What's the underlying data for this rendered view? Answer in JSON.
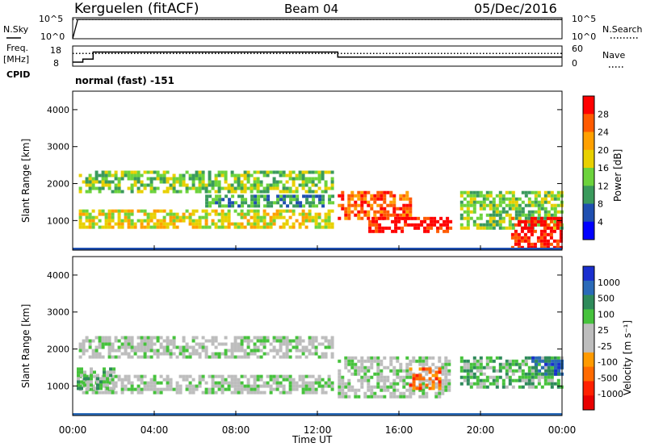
{
  "header": {
    "radar": "Kerguelen (fitACF)",
    "beam": "Beam 04",
    "date": "05/Dec/2016"
  },
  "noise_panel": {
    "left_label": "N.Sky",
    "right_label": "N.Search",
    "ticks": [
      "10^5",
      "10^0"
    ]
  },
  "freq_panel": {
    "left_label": "Freq.",
    "left_unit": "[MHz]",
    "left_ticks": [
      "18",
      "8"
    ],
    "right_label": "Nave",
    "right_ticks": [
      "60",
      "0"
    ],
    "cpid_label": "CPID",
    "cpid_text": "normal (fast) -151"
  },
  "colors": {
    "power": [
      "#0000ff",
      "#1f4fb0",
      "#3a9a5c",
      "#6cd33c",
      "#e8d000",
      "#ffa000",
      "#ff5a00",
      "#ff0000"
    ],
    "velocity": [
      "#1a2fcf",
      "#2a6ab8",
      "#2e8a5a",
      "#46c23c",
      "#bdbdbd",
      "#bdbdbd",
      "#ff9a00",
      "#ff6a00",
      "#ff2000",
      "#e80000"
    ]
  },
  "chart_data": [
    {
      "type": "line",
      "panel": "noise",
      "x_range_hours": [
        0,
        24
      ],
      "series": [
        {
          "name": "N.Sky",
          "style": "solid",
          "x": [
            0,
            0.25,
            24
          ],
          "y_log10": [
            0.0,
            4.6,
            4.6
          ]
        },
        {
          "name": "N.Search",
          "style": "dotted",
          "x": [
            0,
            24
          ],
          "y_log10": [
            4.6,
            4.6
          ]
        }
      ]
    },
    {
      "type": "line",
      "panel": "frequency / nave",
      "x_range_hours": [
        0,
        24
      ],
      "series": [
        {
          "name": "Freq.",
          "style": "solid",
          "x": [
            0,
            0.5,
            0.5,
            1.0,
            1.0,
            13.0,
            13.0,
            24
          ],
          "y": [
            10,
            10,
            11.5,
            11.5,
            15,
            15,
            12.5,
            12.5
          ]
        },
        {
          "name": "Nave",
          "style": "dotted",
          "x": [
            0,
            24
          ],
          "y": [
            38,
            38
          ]
        }
      ]
    },
    {
      "type": "heatmap",
      "panel": "power",
      "ylabel": "Slant Range [km]",
      "y_ticks": [
        "1000",
        "2000",
        "3000",
        "4000"
      ],
      "ylim": [
        200,
        4500
      ],
      "xlim": [
        0,
        24
      ],
      "colorbar_label": "Power [dB]",
      "colorbar_ticks": [
        "28",
        "24",
        "20",
        "16",
        "12",
        "8",
        "4"
      ],
      "regions": [
        {
          "x0": 0.3,
          "x1": 12.8,
          "y0": 1750,
          "y1": 2350,
          "level": 3
        },
        {
          "x0": 0.3,
          "x1": 12.8,
          "y0": 800,
          "y1": 1300,
          "level": 4
        },
        {
          "x0": 6.5,
          "x1": 12.8,
          "y0": 1400,
          "y1": 1700,
          "level": 2
        },
        {
          "x0": 13.0,
          "x1": 16.5,
          "y0": 1050,
          "y1": 1800,
          "level": 6
        },
        {
          "x0": 14.5,
          "x1": 18.5,
          "y0": 700,
          "y1": 1100,
          "level": 7
        },
        {
          "x0": 19.0,
          "x1": 24,
          "y0": 800,
          "y1": 1800,
          "level": 3
        },
        {
          "x0": 21.5,
          "x1": 24,
          "y0": 300,
          "y1": 1100,
          "level": 7
        }
      ]
    },
    {
      "type": "heatmap",
      "panel": "velocity",
      "ylabel": "Slant Range [km]",
      "y_ticks": [
        "1000",
        "2000",
        "3000",
        "4000"
      ],
      "ylim": [
        200,
        4500
      ],
      "xlim": [
        0,
        24
      ],
      "colorbar_label": "Velocity [m s⁻¹]",
      "colorbar_ticks": [
        "1000",
        "500",
        "100",
        "25",
        "-25",
        "-100",
        "-500",
        "-1000"
      ],
      "regions": [
        {
          "x0": 0.3,
          "x1": 12.8,
          "y0": 1750,
          "y1": 2350,
          "level": 4
        },
        {
          "x0": 0.3,
          "x1": 12.8,
          "y0": 800,
          "y1": 1300,
          "level": 4
        },
        {
          "x0": 0.2,
          "x1": 2.0,
          "y0": 900,
          "y1": 1500,
          "level": 3
        },
        {
          "x0": 13.0,
          "x1": 18.5,
          "y0": 700,
          "y1": 1800,
          "level": 4
        },
        {
          "x0": 16.5,
          "x1": 18.0,
          "y0": 900,
          "y1": 1500,
          "level": 7
        },
        {
          "x0": 19.0,
          "x1": 24,
          "y0": 1000,
          "y1": 1800,
          "level": 3
        },
        {
          "x0": 22.5,
          "x1": 24,
          "y0": 1300,
          "y1": 1800,
          "level": 1
        }
      ]
    }
  ],
  "time_axis": {
    "ticks": [
      "00:00",
      "04:00",
      "08:00",
      "12:00",
      "16:00",
      "20:00",
      "00:00"
    ],
    "label": "Time UT"
  }
}
